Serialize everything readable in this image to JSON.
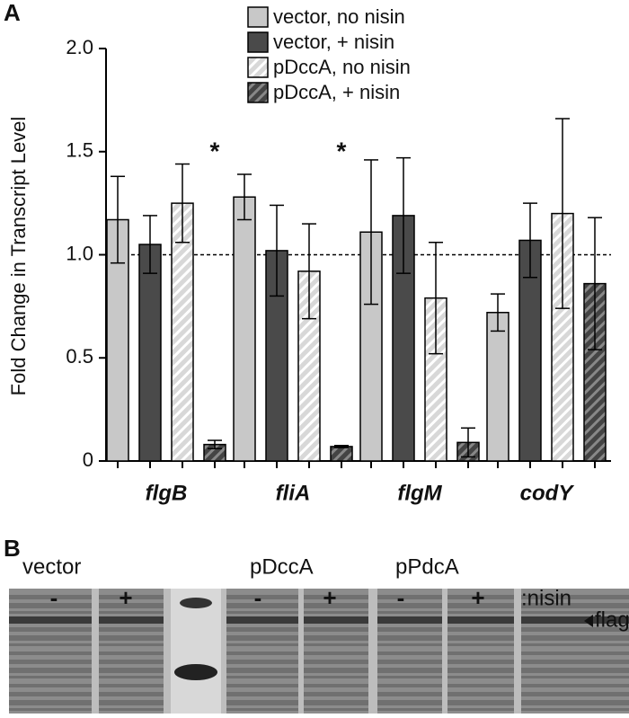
{
  "chart_data": {
    "type": "bar",
    "panel": "A",
    "ylabel": "Fold Change in Transcript Level",
    "categories": [
      "flgB",
      "fliA",
      "flgM",
      "codY"
    ],
    "series": [
      {
        "name": "vector, no nisin",
        "color": "#c8c8c8",
        "hatch": false,
        "values": [
          1.17,
          1.28,
          1.11,
          0.72
        ],
        "errors": [
          0.21,
          0.11,
          0.35,
          0.09
        ]
      },
      {
        "name": "vector, + nisin",
        "color": "#4a4a4a",
        "hatch": false,
        "values": [
          1.05,
          1.02,
          1.19,
          1.07
        ],
        "errors": [
          0.14,
          0.22,
          0.28,
          0.18
        ]
      },
      {
        "name": "pDccA, no nisin",
        "color": "#c8c8c8",
        "hatch": true,
        "values": [
          1.25,
          0.92,
          0.79,
          1.2
        ],
        "errors": [
          0.19,
          0.23,
          0.27,
          0.46
        ]
      },
      {
        "name": "pDccA, + nisin",
        "color": "#4a4a4a",
        "hatch": true,
        "values": [
          0.08,
          0.07,
          0.09,
          0.86
        ],
        "errors": [
          0.02,
          0.005,
          0.07,
          0.32
        ]
      }
    ],
    "annotations": [
      "*",
      "*"
    ],
    "reference_line": 1,
    "ylim": [
      0,
      2
    ],
    "yticks": [
      0,
      0.5,
      {
        "value": 1,
        "label": "1.0"
      },
      1.5,
      {
        "value": 2,
        "label": "2.0"
      }
    ],
    "legend": "top-right"
  },
  "panel_b": {
    "panel": "B",
    "groups": [
      "vector",
      "pDccA",
      "pPdcA"
    ],
    "lanes": [
      "-",
      "+",
      "-",
      "+",
      "-",
      "+"
    ],
    "condition": ":nisin",
    "band_label": "flagellin"
  }
}
